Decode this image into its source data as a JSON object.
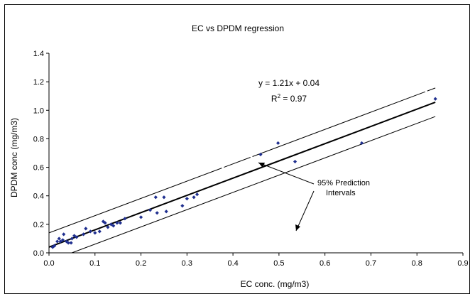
{
  "chart_data": {
    "type": "scatter",
    "title": "EC vs DPDM regression",
    "xlabel": "EC conc. (mg/m3)",
    "ylabel": "DPDM conc (mg/m3)",
    "xlim": [
      0,
      0.9
    ],
    "ylim": [
      0,
      1.4
    ],
    "x_ticks": [
      "0.0",
      "0.1",
      "0.2",
      "0.3",
      "0.4",
      "0.5",
      "0.6",
      "0.7",
      "0.8",
      "0.9"
    ],
    "y_ticks": [
      "0.0",
      "0.2",
      "0.4",
      "0.6",
      "0.8",
      "1.0",
      "1.2",
      "1.4"
    ],
    "grid": false,
    "marker_color": "#1f2f8f",
    "equation_text": "y = 1.21x + 0.04",
    "r2_prefix": "R",
    "r2_sup": "2",
    "r2_value": " = 0.97",
    "annotation_line1": "95% Prediction",
    "annotation_line2": "Intervals",
    "regression": {
      "slope": 1.21,
      "intercept": 0.04
    },
    "prediction_interval": {
      "upper_offset": 0.1,
      "lower_offset": -0.1
    },
    "points": [
      [
        0.008,
        0.04
      ],
      [
        0.012,
        0.05
      ],
      [
        0.018,
        0.08
      ],
      [
        0.022,
        0.1
      ],
      [
        0.025,
        0.08
      ],
      [
        0.03,
        0.09
      ],
      [
        0.032,
        0.13
      ],
      [
        0.038,
        0.08
      ],
      [
        0.042,
        0.07
      ],
      [
        0.048,
        0.07
      ],
      [
        0.05,
        0.1
      ],
      [
        0.055,
        0.12
      ],
      [
        0.06,
        0.11
      ],
      [
        0.075,
        0.13
      ],
      [
        0.08,
        0.17
      ],
      [
        0.09,
        0.15
      ],
      [
        0.1,
        0.14
      ],
      [
        0.11,
        0.15
      ],
      [
        0.118,
        0.22
      ],
      [
        0.122,
        0.21
      ],
      [
        0.128,
        0.18
      ],
      [
        0.135,
        0.2
      ],
      [
        0.14,
        0.19
      ],
      [
        0.148,
        0.21
      ],
      [
        0.155,
        0.21
      ],
      [
        0.165,
        0.24
      ],
      [
        0.2,
        0.25
      ],
      [
        0.22,
        0.3
      ],
      [
        0.232,
        0.39
      ],
      [
        0.235,
        0.28
      ],
      [
        0.25,
        0.39
      ],
      [
        0.255,
        0.29
      ],
      [
        0.29,
        0.33
      ],
      [
        0.3,
        0.38
      ],
      [
        0.315,
        0.39
      ],
      [
        0.322,
        0.41
      ],
      [
        0.46,
        0.69
      ],
      [
        0.498,
        0.77
      ],
      [
        0.535,
        0.64
      ],
      [
        0.68,
        0.77
      ],
      [
        0.84,
        1.08
      ]
    ]
  }
}
